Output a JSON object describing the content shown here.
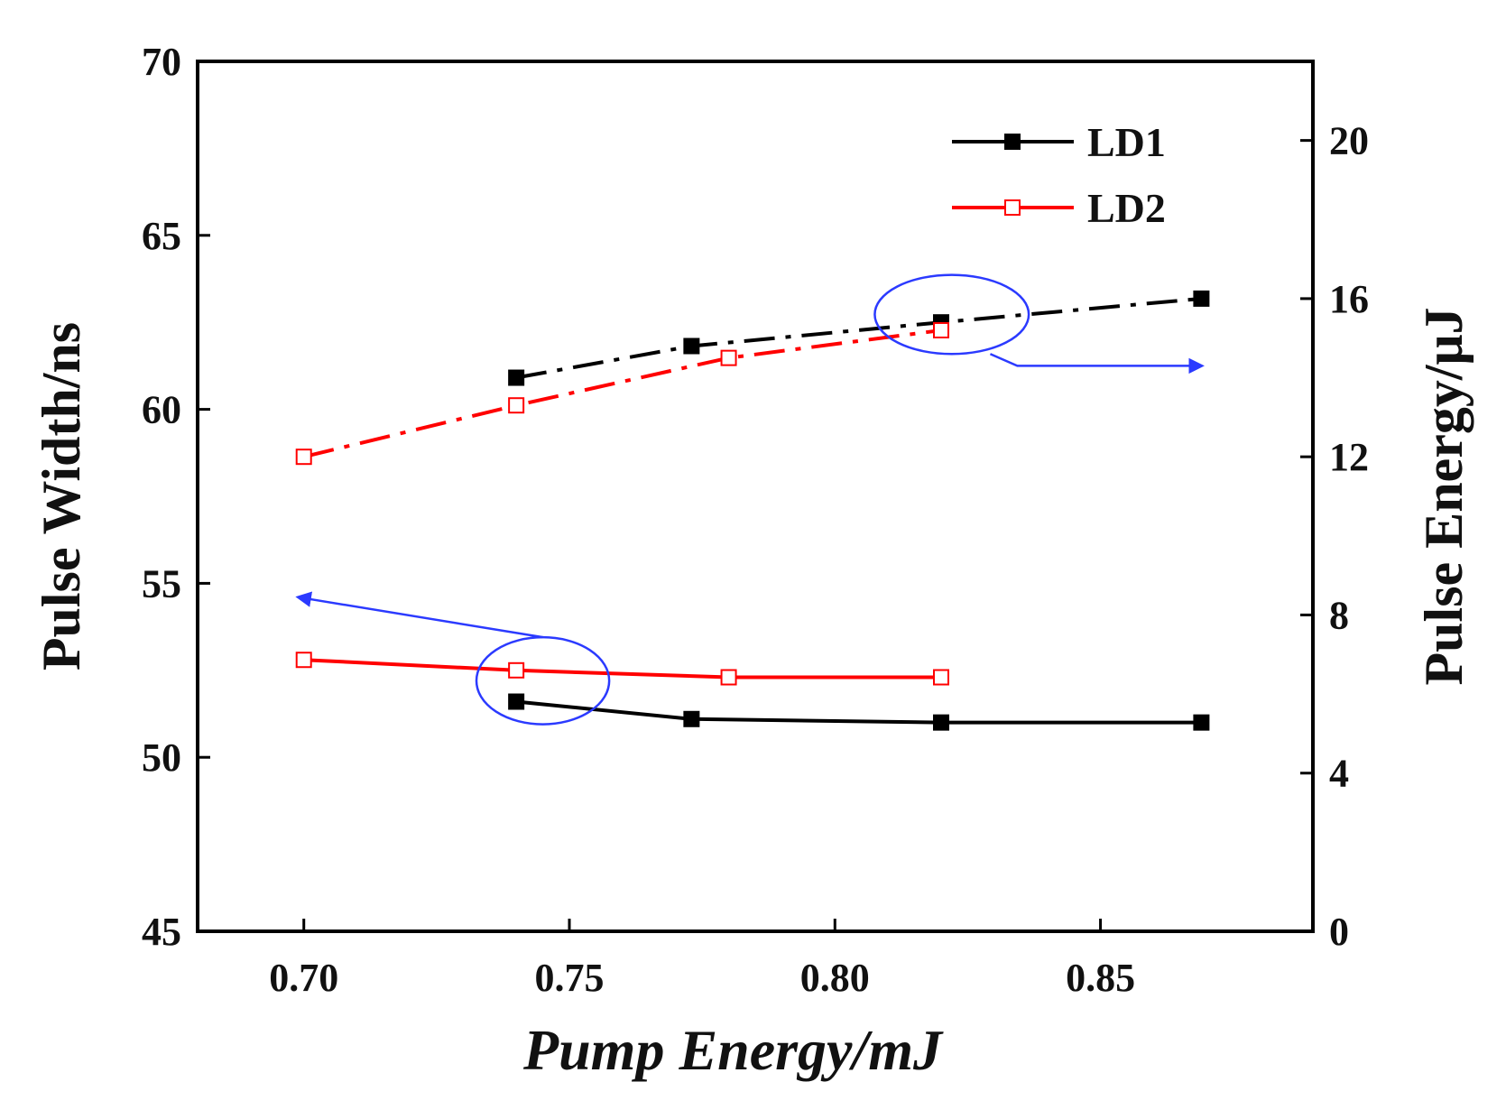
{
  "chart_data": {
    "type": "line",
    "title": "",
    "xlabel": "Pump Energy/mJ",
    "ylabel": "Pulse Width/ns",
    "ylabel_right": "Pulse Energy/μJ",
    "xlim": [
      0.68,
      0.89
    ],
    "ylim": [
      45,
      70
    ],
    "ylim_right": [
      0,
      22
    ],
    "x_ticks": [
      {
        "value": 0.7,
        "label": "0.70"
      },
      {
        "value": 0.75,
        "label": "0.75"
      },
      {
        "value": 0.8,
        "label": "0.80"
      },
      {
        "value": 0.85,
        "label": "0.85"
      }
    ],
    "y_ticks": [
      {
        "value": 45,
        "label": "45"
      },
      {
        "value": 50,
        "label": "50"
      },
      {
        "value": 55,
        "label": "55"
      },
      {
        "value": 60,
        "label": "60"
      },
      {
        "value": 65,
        "label": "65"
      },
      {
        "value": 70,
        "label": "70"
      }
    ],
    "y_right_ticks": [
      {
        "value": 0,
        "label": "0"
      },
      {
        "value": 4,
        "label": "4"
      },
      {
        "value": 8,
        "label": "8"
      },
      {
        "value": 12,
        "label": "12"
      },
      {
        "value": 16,
        "label": "16"
      },
      {
        "value": 20,
        "label": "20"
      }
    ],
    "legend": {
      "position": "top-right",
      "entries": [
        {
          "label": "LD1",
          "color": "#000000",
          "marker": "filled-square"
        },
        {
          "label": "LD2",
          "color": "#ff0000",
          "marker": "open-square"
        }
      ]
    },
    "series": [
      {
        "name": "LD1",
        "quantity": "Pulse Width",
        "axis": "left",
        "color": "#000000",
        "line_style": "solid",
        "marker": "filled-square",
        "x": [
          0.74,
          0.773,
          0.82,
          0.869
        ],
        "y": [
          51.6,
          51.1,
          51.0,
          51.0
        ]
      },
      {
        "name": "LD2",
        "quantity": "Pulse Width",
        "axis": "left",
        "color": "#ff0000",
        "line_style": "solid",
        "marker": "open-square",
        "x": [
          0.7,
          0.74,
          0.78,
          0.82
        ],
        "y": [
          52.8,
          52.5,
          52.3,
          52.3
        ]
      },
      {
        "name": "LD1",
        "quantity": "Pulse Energy",
        "axis": "right",
        "color": "#000000",
        "line_style": "dash-dot",
        "marker": "filled-square",
        "x": [
          0.74,
          0.773,
          0.82,
          0.869
        ],
        "y": [
          14.0,
          14.8,
          15.4,
          16.0
        ]
      },
      {
        "name": "LD2",
        "quantity": "Pulse Energy",
        "axis": "right",
        "color": "#ff0000",
        "line_style": "dash-dot",
        "marker": "open-square",
        "x": [
          0.7,
          0.74,
          0.78,
          0.82
        ],
        "y": [
          12.0,
          13.3,
          14.5,
          15.2
        ]
      }
    ],
    "annotations": [
      {
        "type": "ellipse",
        "color": "#2b3aff",
        "around": "Pulse Width curves",
        "center": {
          "x": 0.745,
          "y": 52.2,
          "axis": "left"
        },
        "radius": {
          "x": 0.0125,
          "y": 1.25
        },
        "arrow_to": "left-axis",
        "arrow_end": {
          "x": 0.699,
          "y": 54.6
        }
      },
      {
        "type": "ellipse",
        "color": "#2b3aff",
        "around": "Pulse Energy curves",
        "center": {
          "x": 0.822,
          "y": 15.6,
          "axis": "right"
        },
        "radius": {
          "x": 0.0145,
          "y": 1.0
        },
        "arrow_to": "right-axis",
        "arrow_end": {
          "x": 0.869,
          "y": 14.3
        }
      }
    ]
  }
}
